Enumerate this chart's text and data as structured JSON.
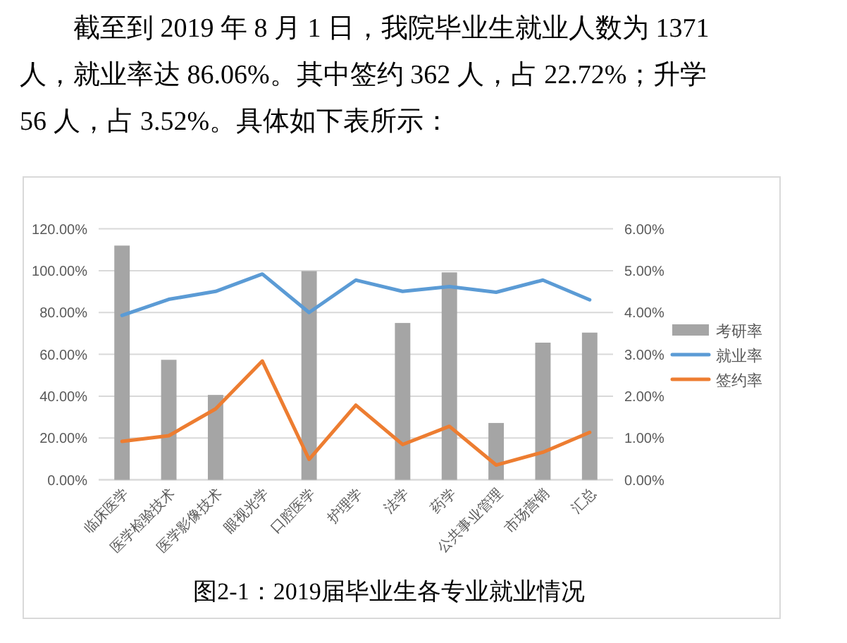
{
  "chart_data": {
    "type": "bar",
    "title": "图2-1：2019届毕业生各专业就业情况",
    "annotations": [
      "截至到 2019 年 8 月 1 日，我院毕业生就业人数为 1371 人，就业率达 86.06%。其中签约 362 人，占 22.72%；升学 56 人，占 3.52%。具体如下表所示："
    ],
    "categories": [
      "临床医学",
      "医学检验技术",
      "医学影像技术",
      "眼视光学",
      "口腔医学",
      "护理学",
      "法学",
      "药学",
      "公共事业管理",
      "市场营销",
      "汇总"
    ],
    "series": [
      {
        "name": "考研率",
        "axis": "y2",
        "color": "#a5a5a5",
        "values": [
          5.6,
          2.87,
          2.03,
          0,
          4.99,
          0,
          3.75,
          4.96,
          1.36,
          3.28,
          3.52
        ]
      },
      {
        "name": "就业率",
        "type": "line",
        "color": "#5b9bd5",
        "values": [
          78.6,
          86.3,
          90.1,
          98.4,
          80.0,
          95.5,
          90.1,
          92.4,
          89.7,
          95.5,
          86.1
        ]
      },
      {
        "name": "签约率",
        "type": "line",
        "color": "#ed7d31",
        "values": [
          18.4,
          21.1,
          33.9,
          56.8,
          9.8,
          35.7,
          16.9,
          25.6,
          7.1,
          13.2,
          22.7
        ]
      }
    ],
    "ylim": [
      0,
      120
    ],
    "yticks": [
      {
        "value": 0,
        "label": "0.00%"
      },
      {
        "value": 20,
        "label": "20.00%"
      },
      {
        "value": 40,
        "label": "40.00%"
      },
      {
        "value": 60,
        "label": "60.00%"
      },
      {
        "value": 80,
        "label": "80.00%"
      },
      {
        "value": 100,
        "label": "100.00%"
      },
      {
        "value": 120,
        "label": "120.00%"
      }
    ],
    "y2lim": [
      0,
      6
    ],
    "y2ticks": [
      {
        "value": 0,
        "label": "0.00%"
      },
      {
        "value": 1,
        "label": "1.00%"
      },
      {
        "value": 2,
        "label": "2.00%"
      },
      {
        "value": 3,
        "label": "3.00%"
      },
      {
        "value": 4,
        "label": "4.00%"
      },
      {
        "value": 5,
        "label": "5.00%"
      },
      {
        "value": 6,
        "label": "6.00%"
      }
    ],
    "grid": "y",
    "legend": "right"
  }
}
